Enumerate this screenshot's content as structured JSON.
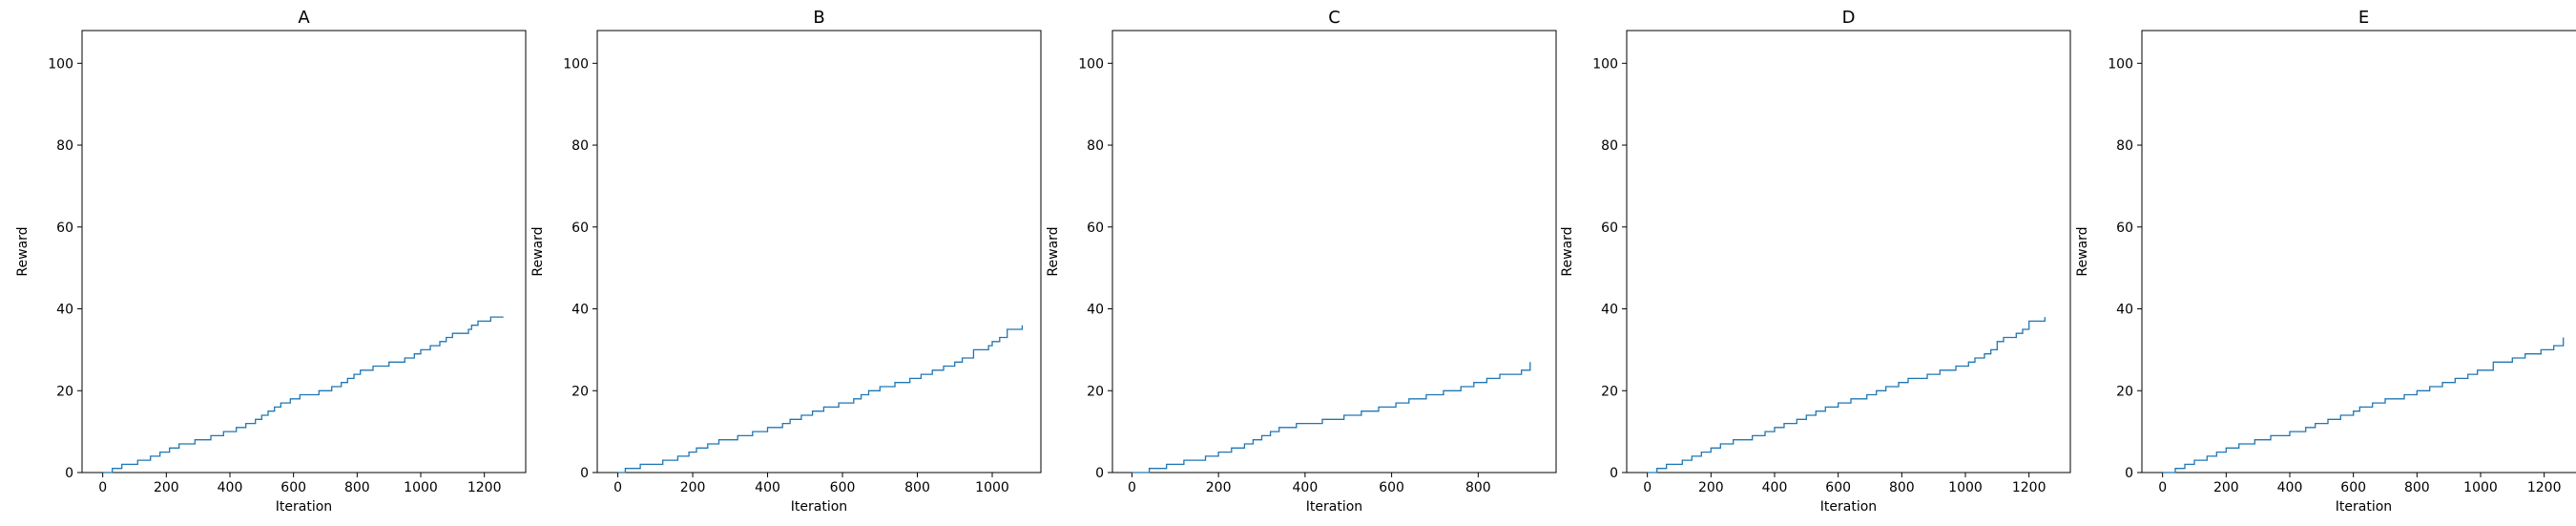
{
  "colors": {
    "line": "#1f77b4",
    "axes": "#000000",
    "background": "#ffffff"
  },
  "chart_data": [
    {
      "type": "line",
      "style": "step",
      "title": "A",
      "xlabel": "Iteration",
      "ylabel": "Reward",
      "xlim": [
        -65,
        1330
      ],
      "ylim": [
        0,
        108
      ],
      "xticks": [
        0,
        200,
        400,
        600,
        800,
        1000,
        1200
      ],
      "yticks": [
        0,
        20,
        40,
        60,
        80,
        100
      ],
      "grid": false,
      "legend": "none",
      "x": [
        0,
        30,
        60,
        110,
        150,
        180,
        210,
        240,
        290,
        340,
        380,
        420,
        450,
        480,
        500,
        520,
        540,
        560,
        590,
        620,
        680,
        720,
        750,
        770,
        790,
        810,
        850,
        900,
        950,
        980,
        1000,
        1030,
        1060,
        1080,
        1100,
        1150,
        1160,
        1180,
        1220,
        1260
      ],
      "y": [
        0,
        1,
        2,
        3,
        4,
        5,
        6,
        7,
        8,
        9,
        10,
        11,
        12,
        13,
        14,
        15,
        16,
        17,
        18,
        19,
        20,
        21,
        22,
        23,
        24,
        25,
        26,
        27,
        28,
        29,
        30,
        31,
        32,
        33,
        34,
        35,
        36,
        37,
        38,
        38
      ]
    },
    {
      "type": "line",
      "style": "step",
      "title": "B",
      "xlabel": "Iteration",
      "ylabel": "Reward",
      "xlim": [
        -55,
        1130
      ],
      "ylim": [
        0,
        108
      ],
      "xticks": [
        0,
        200,
        400,
        600,
        800,
        1000
      ],
      "yticks": [
        0,
        20,
        40,
        60,
        80,
        100
      ],
      "grid": false,
      "legend": "none",
      "x": [
        0,
        20,
        60,
        120,
        160,
        190,
        210,
        240,
        270,
        320,
        360,
        400,
        440,
        460,
        490,
        520,
        550,
        590,
        630,
        650,
        670,
        700,
        740,
        780,
        810,
        840,
        870,
        900,
        920,
        950,
        990,
        1000,
        1020,
        1040,
        1080
      ],
      "y": [
        0,
        1,
        2,
        3,
        4,
        5,
        6,
        7,
        8,
        9,
        10,
        11,
        12,
        13,
        14,
        15,
        16,
        17,
        18,
        19,
        20,
        21,
        22,
        23,
        24,
        25,
        26,
        27,
        28,
        30,
        31,
        32,
        33,
        35,
        36
      ]
    },
    {
      "type": "line",
      "style": "step",
      "title": "C",
      "xlabel": "Iteration",
      "ylabel": "Reward",
      "xlim": [
        -45,
        980
      ],
      "ylim": [
        0,
        108
      ],
      "xticks": [
        0,
        200,
        400,
        600,
        800
      ],
      "yticks": [
        0,
        20,
        40,
        60,
        80,
        100
      ],
      "grid": false,
      "legend": "none",
      "x": [
        0,
        40,
        80,
        120,
        170,
        200,
        230,
        260,
        280,
        300,
        320,
        340,
        380,
        440,
        490,
        530,
        570,
        610,
        640,
        680,
        720,
        760,
        790,
        820,
        850,
        900,
        920
      ],
      "y": [
        0,
        1,
        2,
        3,
        4,
        5,
        6,
        7,
        8,
        9,
        10,
        11,
        12,
        13,
        14,
        15,
        16,
        17,
        18,
        19,
        20,
        21,
        22,
        23,
        24,
        25,
        27
      ]
    },
    {
      "type": "line",
      "style": "step",
      "title": "D",
      "xlabel": "Iteration",
      "ylabel": "Reward",
      "xlim": [
        -65,
        1330
      ],
      "ylim": [
        0,
        108
      ],
      "xticks": [
        0,
        200,
        400,
        600,
        800,
        1000,
        1200
      ],
      "yticks": [
        0,
        20,
        40,
        60,
        80,
        100
      ],
      "grid": false,
      "legend": "none",
      "x": [
        0,
        30,
        60,
        110,
        140,
        170,
        200,
        230,
        270,
        330,
        370,
        400,
        430,
        470,
        500,
        530,
        560,
        600,
        640,
        690,
        720,
        750,
        790,
        820,
        880,
        920,
        970,
        1010,
        1030,
        1060,
        1080,
        1100,
        1120,
        1160,
        1180,
        1200,
        1250
      ],
      "y": [
        0,
        1,
        2,
        3,
        4,
        5,
        6,
        7,
        8,
        9,
        10,
        11,
        12,
        13,
        14,
        15,
        16,
        17,
        18,
        19,
        20,
        21,
        22,
        23,
        24,
        25,
        26,
        27,
        28,
        29,
        30,
        32,
        33,
        34,
        35,
        37,
        38
      ]
    },
    {
      "type": "line",
      "style": "step",
      "title": "E",
      "xlabel": "Iteration",
      "ylabel": "Reward",
      "xlim": [
        -65,
        1330
      ],
      "ylim": [
        0,
        108
      ],
      "xticks": [
        0,
        200,
        400,
        600,
        800,
        1000,
        1200
      ],
      "yticks": [
        0,
        20,
        40,
        60,
        80,
        100
      ],
      "grid": false,
      "legend": "none",
      "x": [
        0,
        40,
        70,
        100,
        140,
        170,
        200,
        240,
        290,
        340,
        400,
        450,
        480,
        520,
        560,
        600,
        620,
        660,
        700,
        760,
        800,
        840,
        880,
        920,
        960,
        990,
        1040,
        1100,
        1140,
        1190,
        1230,
        1260
      ],
      "y": [
        0,
        1,
        2,
        3,
        4,
        5,
        6,
        7,
        8,
        9,
        10,
        11,
        12,
        13,
        14,
        15,
        16,
        17,
        18,
        19,
        20,
        21,
        22,
        23,
        24,
        25,
        27,
        28,
        29,
        30,
        31,
        33
      ]
    }
  ]
}
